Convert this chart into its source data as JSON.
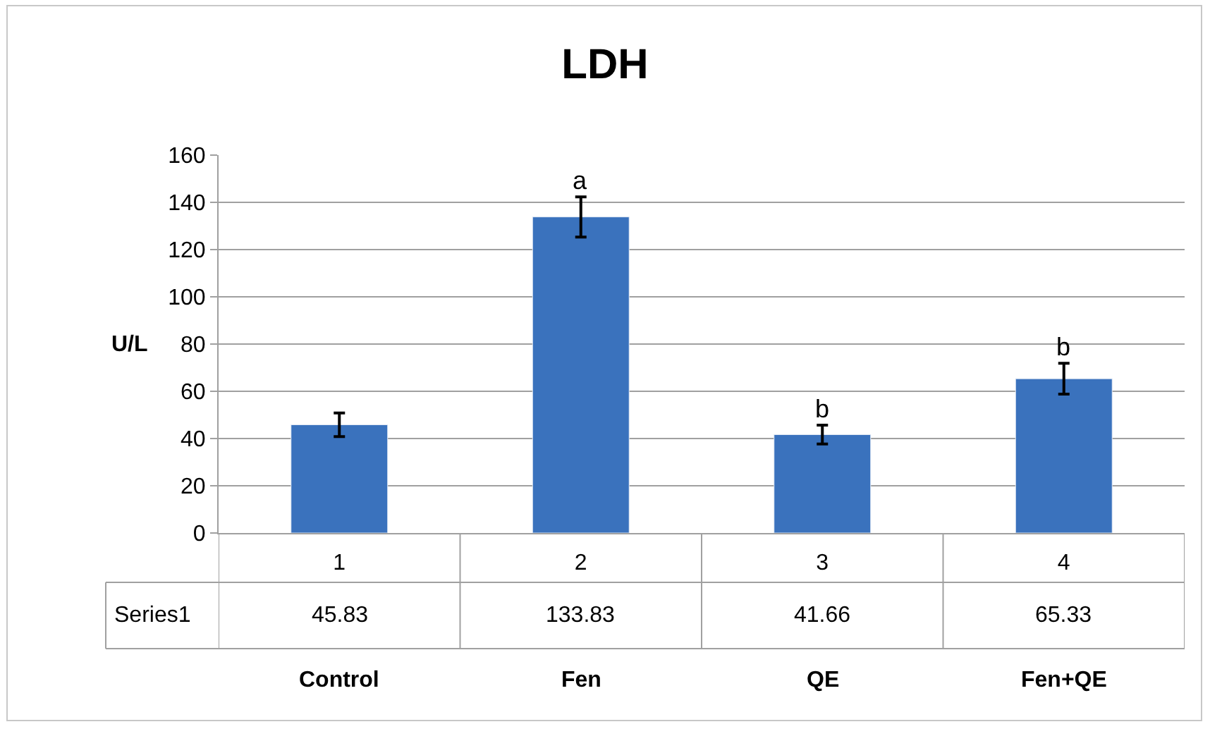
{
  "chart_data": {
    "type": "bar",
    "title": "LDH",
    "ylabel": "U/L",
    "categories": [
      "1",
      "2",
      "3",
      "4"
    ],
    "series": [
      {
        "name": "Series1",
        "color": "#3a72bd",
        "values": [
          45.83,
          133.83,
          41.66,
          65.33
        ],
        "errors": [
          5,
          8.5,
          4,
          6.5
        ]
      }
    ],
    "data_labels": true,
    "ylim": [
      0,
      160
    ],
    "yticks": [
      0,
      20,
      40,
      60,
      80,
      100,
      120,
      140,
      160
    ],
    "grid": "y",
    "legend": false,
    "annotations": [
      "a",
      "b",
      "b",
      "Control",
      "Fen",
      "QE",
      "Fen+QE"
    ]
  }
}
